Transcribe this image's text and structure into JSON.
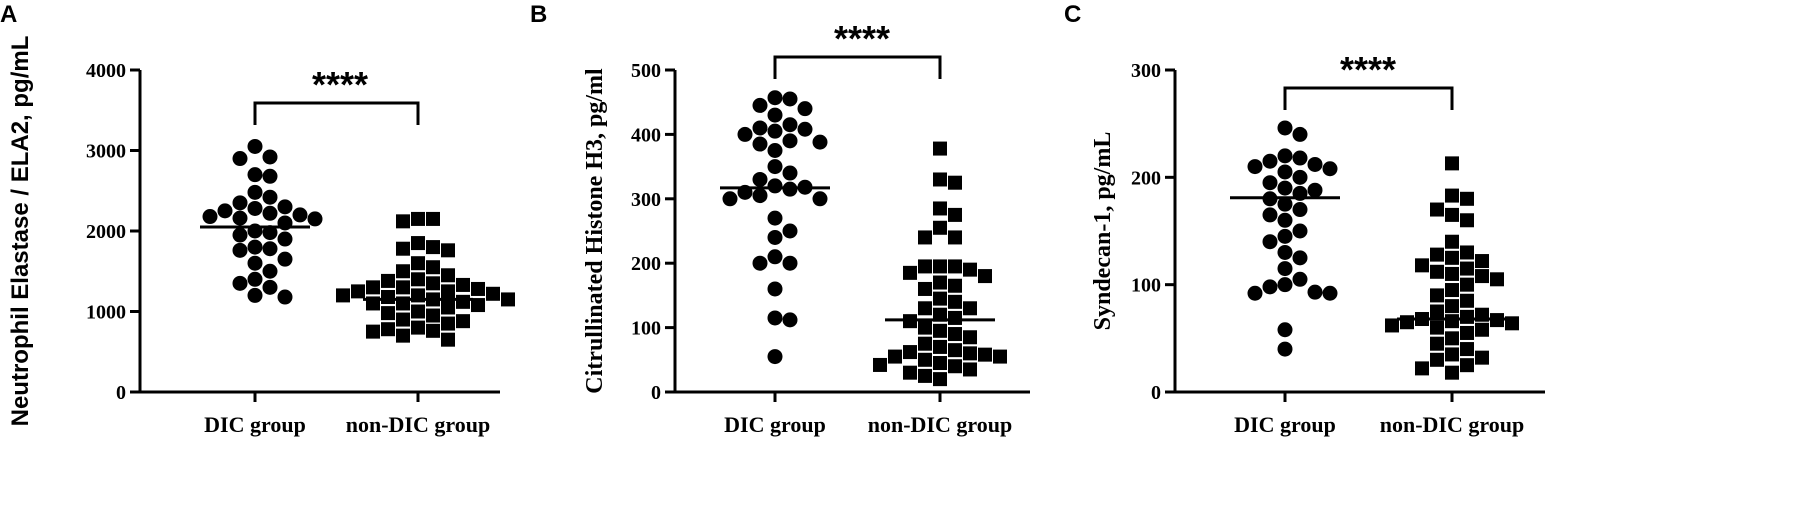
{
  "chart_data": [
    {
      "type": "scatter",
      "panel_label": "A",
      "ylabel": "Neutrophil Elastase / ELA2, pg/mL",
      "ylim": [
        0,
        4000
      ],
      "yticks": [
        0,
        1000,
        2000,
        3000,
        4000
      ],
      "categories": [
        "DIC group",
        "non-DIC group"
      ],
      "significance": "****",
      "series": [
        {
          "category": "DIC group",
          "marker": "circle",
          "median": 2050,
          "values": [
            3050,
            2920,
            2900,
            2700,
            2680,
            2480,
            2420,
            2350,
            2300,
            2280,
            2250,
            2220,
            2200,
            2180,
            2160,
            2150,
            2100,
            2000,
            1980,
            1950,
            1900,
            1800,
            1780,
            1760,
            1650,
            1600,
            1500,
            1400,
            1350,
            1300,
            1200,
            1180
          ]
        },
        {
          "category": "non-DIC group",
          "marker": "square",
          "median": 1150,
          "values": [
            2150,
            2150,
            2120,
            1850,
            1800,
            1780,
            1760,
            1600,
            1550,
            1500,
            1450,
            1400,
            1380,
            1350,
            1330,
            1300,
            1300,
            1280,
            1250,
            1250,
            1220,
            1200,
            1200,
            1180,
            1150,
            1150,
            1120,
            1100,
            1100,
            1080,
            1050,
            1000,
            980,
            950,
            900,
            880,
            850,
            800,
            780,
            760,
            750,
            700,
            650
          ]
        }
      ]
    },
    {
      "type": "scatter",
      "panel_label": "B",
      "ylabel": "Citrullinated Histone H3,  pg/ml",
      "ylim": [
        0,
        500
      ],
      "yticks": [
        0,
        100,
        200,
        300,
        400,
        500
      ],
      "categories": [
        "DIC group",
        "non-DIC group"
      ],
      "significance": "****",
      "series": [
        {
          "category": "DIC group",
          "marker": "circle",
          "median": 317,
          "values": [
            457,
            455,
            445,
            440,
            430,
            415,
            410,
            408,
            405,
            400,
            390,
            388,
            385,
            375,
            350,
            340,
            330,
            320,
            318,
            315,
            310,
            305,
            300,
            300,
            270,
            250,
            240,
            210,
            200,
            200,
            160,
            115,
            112,
            55
          ]
        },
        {
          "category": "non-DIC group",
          "marker": "square",
          "median": 112,
          "values": [
            378,
            330,
            325,
            285,
            275,
            255,
            240,
            240,
            195,
            195,
            195,
            190,
            185,
            180,
            170,
            165,
            160,
            145,
            140,
            130,
            130,
            120,
            115,
            110,
            100,
            95,
            90,
            85,
            75,
            70,
            65,
            62,
            60,
            58,
            55,
            55,
            50,
            45,
            42,
            40,
            35,
            30,
            25,
            20
          ]
        }
      ]
    },
    {
      "type": "scatter",
      "panel_label": "C",
      "ylabel": "Syndecan-1, pg/mL",
      "ylim": [
        0,
        300
      ],
      "yticks": [
        0,
        100,
        200,
        300
      ],
      "categories": [
        "DIC group",
        "non-DIC group"
      ],
      "significance": "****",
      "series": [
        {
          "category": "DIC group",
          "marker": "circle",
          "median": 181,
          "values": [
            246,
            240,
            220,
            218,
            215,
            212,
            210,
            208,
            205,
            200,
            195,
            190,
            188,
            185,
            180,
            175,
            170,
            165,
            160,
            150,
            145,
            140,
            130,
            125,
            115,
            105,
            100,
            98,
            93,
            92,
            92,
            58,
            40
          ]
        },
        {
          "category": "non-DIC group",
          "marker": "square",
          "median": 68,
          "values": [
            213,
            183,
            180,
            170,
            165,
            160,
            140,
            130,
            128,
            125,
            122,
            118,
            115,
            112,
            110,
            108,
            105,
            100,
            95,
            90,
            85,
            80,
            75,
            72,
            70,
            68,
            67,
            66,
            65,
            64,
            62,
            60,
            58,
            55,
            50,
            45,
            40,
            35,
            32,
            30,
            25,
            22,
            18
          ]
        }
      ]
    }
  ]
}
